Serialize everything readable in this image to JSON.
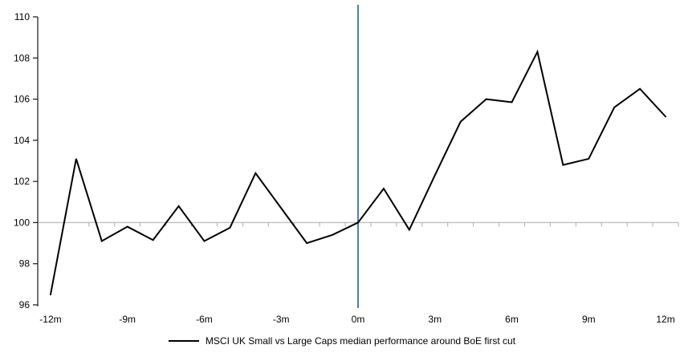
{
  "chart_data": {
    "type": "line",
    "legend": "MSCI UK Small vs Large Caps median performance around BoE first cut",
    "legend_position": "bottom-center",
    "grid": "off",
    "x": [
      -12,
      -11,
      -10,
      -9,
      -8,
      -7,
      -6,
      -5,
      -4,
      -3,
      -2,
      -1,
      0,
      1,
      2,
      3,
      4,
      5,
      6,
      7,
      8,
      9,
      10,
      11,
      12
    ],
    "series": [
      {
        "name": "MSCI UK Small vs Large Caps median performance around BoE first cut",
        "color": "#000000",
        "values": [
          96.5,
          103.1,
          99.1,
          99.8,
          99.15,
          100.8,
          99.1,
          99.75,
          102.4,
          100.7,
          99.0,
          99.4,
          100.0,
          101.65,
          99.65,
          102.3,
          104.9,
          106.0,
          105.85,
          108.3,
          102.8,
          103.1,
          105.6,
          106.5,
          105.15
        ]
      }
    ],
    "baseline": {
      "value": 100,
      "color": "#bfbfbf"
    },
    "event_line": {
      "x": 0,
      "color": "#4a7ebc"
    },
    "x_ticks": [
      {
        "value": -12,
        "label": "-12m"
      },
      {
        "value": -9,
        "label": "-9m"
      },
      {
        "value": -6,
        "label": "-6m"
      },
      {
        "value": -3,
        "label": "-3m"
      },
      {
        "value": 0,
        "label": "0m"
      },
      {
        "value": 3,
        "label": "3m"
      },
      {
        "value": 6,
        "label": "6m"
      },
      {
        "value": 9,
        "label": "9m"
      },
      {
        "value": 12,
        "label": "12m"
      }
    ],
    "y_ticks": [
      96,
      98,
      100,
      102,
      104,
      106,
      108,
      110
    ],
    "ylim": [
      96,
      110
    ],
    "xlim": [
      -12.5,
      12.5
    ],
    "axis_color": "#262626",
    "minor_tick_color": "#ababab"
  }
}
